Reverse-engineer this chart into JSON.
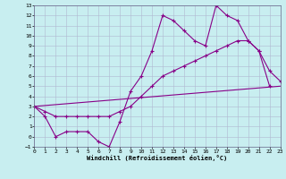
{
  "xlabel": "Windchill (Refroidissement éolien,°C)",
  "background_color": "#c8eef0",
  "grid_color": "#b0b8d0",
  "line_color": "#880088",
  "xlim": [
    0,
    23
  ],
  "ylim": [
    -1,
    13
  ],
  "xticks": [
    0,
    1,
    2,
    3,
    4,
    5,
    6,
    7,
    8,
    9,
    10,
    11,
    12,
    13,
    14,
    15,
    16,
    17,
    18,
    19,
    20,
    21,
    22,
    23
  ],
  "yticks": [
    -1,
    0,
    1,
    2,
    3,
    4,
    5,
    6,
    7,
    8,
    9,
    10,
    11,
    12,
    13
  ],
  "line1_x": [
    0,
    1,
    2,
    3,
    4,
    5,
    6,
    7,
    8,
    9,
    10,
    11,
    12,
    13,
    14,
    15,
    16,
    17,
    18,
    19,
    20,
    21,
    22
  ],
  "line1_y": [
    3,
    2,
    0,
    0.5,
    0.5,
    0.5,
    -0.5,
    -1,
    1.5,
    4.5,
    6,
    8.5,
    12,
    11.5,
    10.5,
    9.5,
    9,
    13,
    12,
    11.5,
    9.5,
    8.5,
    5
  ],
  "line2_x": [
    0,
    1,
    2,
    3,
    4,
    5,
    6,
    7,
    8,
    9,
    10,
    11,
    12,
    13,
    14,
    15,
    16,
    17,
    18,
    19,
    20,
    21,
    22,
    23
  ],
  "line2_y": [
    3,
    2.5,
    2,
    2,
    2,
    2,
    2,
    2,
    2.5,
    3,
    4,
    5,
    6,
    6.5,
    7,
    7.5,
    8,
    8.5,
    9,
    9.5,
    9.5,
    8.5,
    6.5,
    5.5
  ],
  "line3_x": [
    0,
    23
  ],
  "line3_y": [
    3,
    5
  ]
}
